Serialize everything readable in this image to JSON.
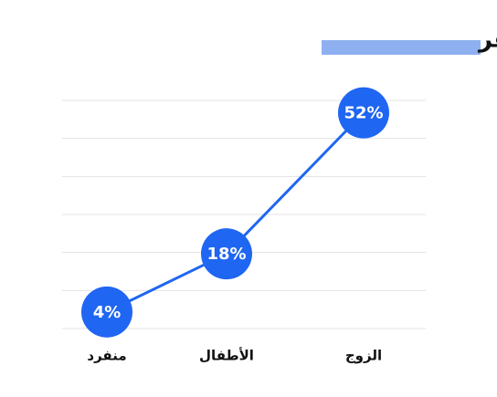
{
  "chart_data": {
    "type": "line",
    "title": "رفقاء السفر",
    "categories": [
      "منفرد",
      "الأطفال",
      "الزوج"
    ],
    "values": [
      4,
      18,
      52
    ],
    "value_labels": [
      "4%",
      "18%",
      "52%"
    ],
    "color": "#1f66f2",
    "ylim": [
      0,
      55
    ],
    "grid": true
  }
}
